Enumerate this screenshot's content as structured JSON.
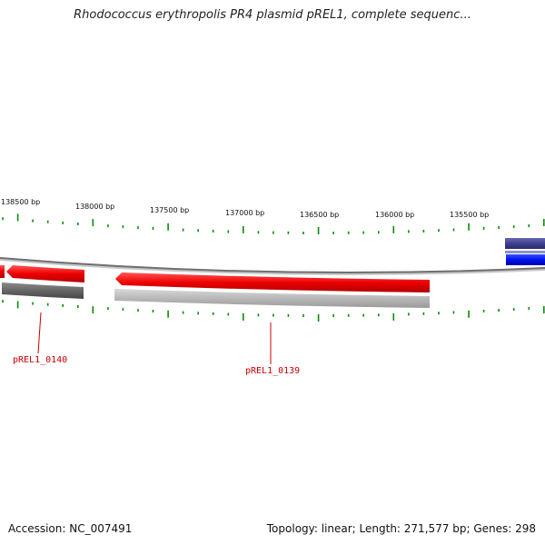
{
  "title": "Rhodococcus erythropolis PR4 plasmid pREL1, complete sequenc...",
  "ruler": {
    "labels": [
      "138500 bp",
      "138000 bp",
      "137500 bp",
      "137000 bp",
      "136500 bp",
      "136000 bp",
      "135500 bp"
    ]
  },
  "genes": [
    {
      "name": "pREL1_0140",
      "strand": "reverse",
      "color": "#ee1111"
    },
    {
      "name": "pREL1_0139",
      "strand": "reverse",
      "color": "#ee1111"
    }
  ],
  "colors": {
    "gene_red": "#ee1111",
    "tick_green": "#0a8a0a",
    "backbone_gray": "#808080",
    "blue_feature": "#0011ee",
    "navy_feature": "#404090"
  },
  "footer": {
    "accession": "Accession: NC_007491",
    "summary": "Topology: linear; Length: 271,577 bp; Genes: 298"
  }
}
